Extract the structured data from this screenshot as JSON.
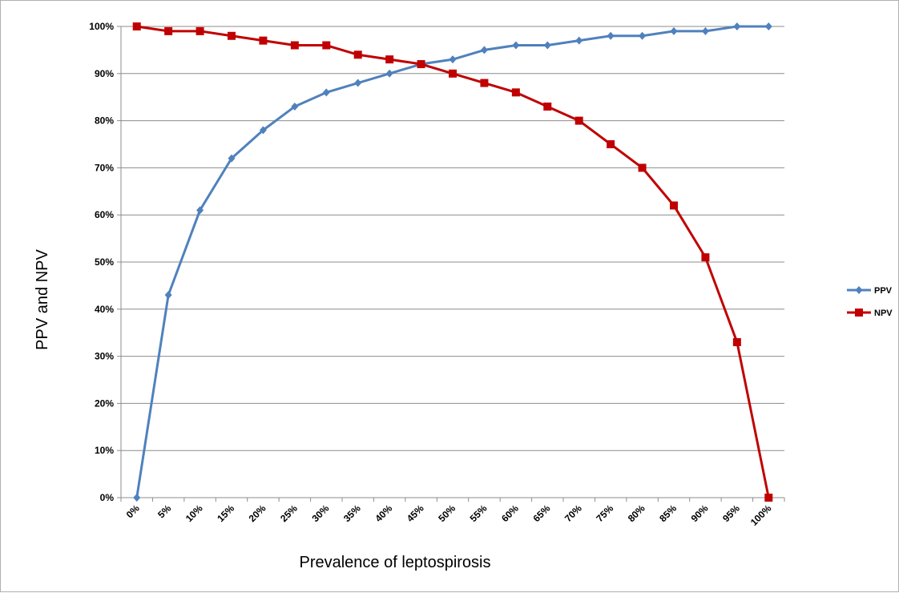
{
  "chart_data": {
    "type": "line",
    "title": "",
    "xlabel": "Prevalence of leptospirosis",
    "ylabel": "PPV and NPV",
    "categories": [
      "0%",
      "5%",
      "10%",
      "15%",
      "20%",
      "25%",
      "30%",
      "35%",
      "40%",
      "45%",
      "50%",
      "55%",
      "60%",
      "65%",
      "70%",
      "75%",
      "80%",
      "85%",
      "90%",
      "95%",
      "100%"
    ],
    "ylim": [
      0,
      100
    ],
    "yticks": [
      "0%",
      "10%",
      "20%",
      "30%",
      "40%",
      "50%",
      "60%",
      "70%",
      "80%",
      "90%",
      "100%"
    ],
    "grid": true,
    "legend_position": "right",
    "series": [
      {
        "name": "PPV",
        "color": "#4F81BD",
        "marker": "diamond",
        "values": [
          0,
          43,
          61,
          72,
          78,
          83,
          86,
          88,
          90,
          92,
          93,
          95,
          96,
          96,
          97,
          98,
          98,
          99,
          99,
          100,
          100
        ]
      },
      {
        "name": "NPV",
        "color": "#C00000",
        "marker": "square",
        "values": [
          100,
          99,
          99,
          98,
          97,
          96,
          96,
          94,
          93,
          92,
          90,
          88,
          86,
          83,
          80,
          75,
          70,
          62,
          51,
          33,
          0
        ]
      }
    ]
  }
}
